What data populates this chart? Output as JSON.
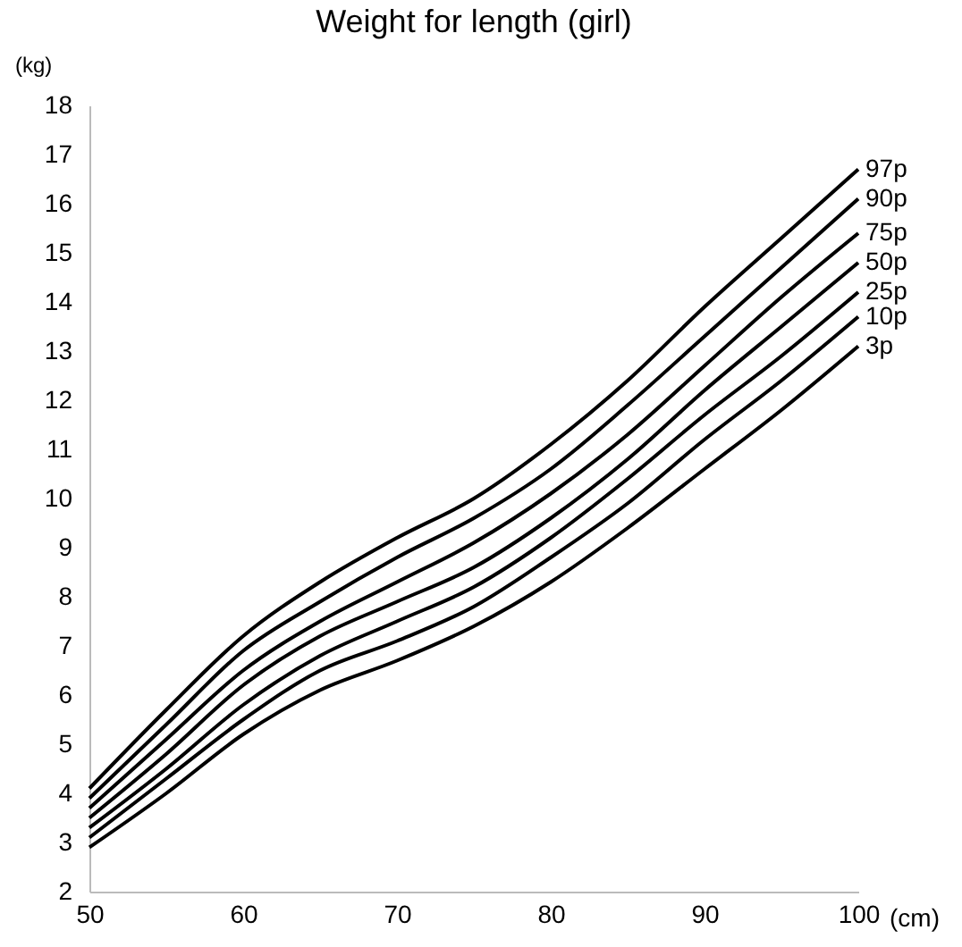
{
  "chart_data": {
    "type": "line",
    "title": "Weight for length (girl)",
    "xlabel": "(cm)",
    "ylabel": "(kg)",
    "x": [
      50,
      55,
      60,
      65,
      70,
      75,
      80,
      85,
      90,
      95,
      100
    ],
    "xlim": [
      50,
      100
    ],
    "xticks": [
      50,
      60,
      70,
      80,
      90,
      100
    ],
    "ylim": [
      2,
      18
    ],
    "yticks": [
      2,
      3,
      4,
      5,
      6,
      7,
      8,
      9,
      10,
      11,
      12,
      13,
      14,
      15,
      16,
      17,
      18
    ],
    "grid": false,
    "legend": false,
    "marker": "none",
    "line_style": "solid",
    "series": [
      {
        "name": "97p",
        "color": "#000000",
        "values": [
          4.1,
          5.7,
          7.2,
          8.3,
          9.2,
          10.0,
          11.1,
          12.4,
          13.9,
          15.3,
          16.7
        ]
      },
      {
        "name": "90p",
        "color": "#000000",
        "values": [
          3.9,
          5.4,
          6.9,
          7.9,
          8.8,
          9.6,
          10.6,
          11.9,
          13.3,
          14.7,
          16.1
        ]
      },
      {
        "name": "75p",
        "color": "#000000",
        "values": [
          3.7,
          5.1,
          6.5,
          7.5,
          8.3,
          9.1,
          10.1,
          11.3,
          12.7,
          14.1,
          15.4
        ]
      },
      {
        "name": "50p",
        "color": "#000000",
        "values": [
          3.5,
          4.8,
          6.2,
          7.2,
          7.9,
          8.6,
          9.6,
          10.8,
          12.2,
          13.5,
          14.8
        ]
      },
      {
        "name": "25p",
        "color": "#000000",
        "values": [
          3.3,
          4.5,
          5.8,
          6.8,
          7.5,
          8.2,
          9.2,
          10.4,
          11.7,
          12.9,
          14.2
        ]
      },
      {
        "name": "10p",
        "color": "#000000",
        "values": [
          3.1,
          4.3,
          5.5,
          6.5,
          7.1,
          7.8,
          8.8,
          9.9,
          11.2,
          12.4,
          13.7
        ]
      },
      {
        "name": "3p",
        "color": "#000000",
        "values": [
          2.9,
          4.0,
          5.2,
          6.1,
          6.7,
          7.4,
          8.3,
          9.4,
          10.6,
          11.8,
          13.1
        ]
      }
    ]
  }
}
